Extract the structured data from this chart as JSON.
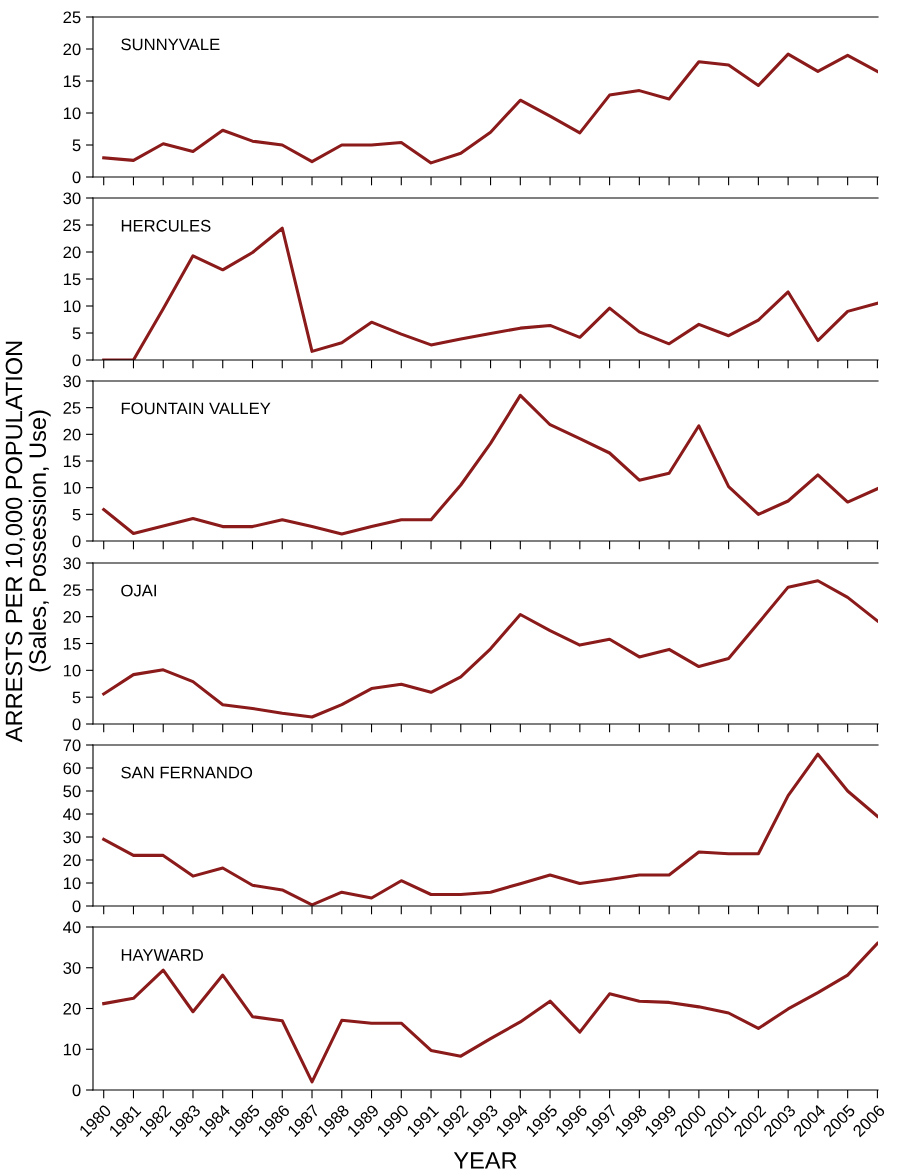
{
  "chart_data": [
    {
      "type": "line",
      "title": "SUNNYVALE",
      "categories": [
        "1980",
        "1981",
        "1982",
        "1983",
        "1984",
        "1985",
        "1986",
        "1987",
        "1988",
        "1989",
        "1990",
        "1991",
        "1992",
        "1993",
        "1994",
        "1995",
        "1996",
        "1997",
        "1998",
        "1999",
        "2000",
        "2001",
        "2002",
        "2003",
        "2004",
        "2005",
        "2006"
      ],
      "tick_labels": "y",
      "ylim": [
        0,
        25
      ],
      "yticks": [
        0,
        5,
        10,
        15,
        20,
        25
      ],
      "grid": false,
      "series": [
        {
          "color": "#8b1a1a",
          "values": [
            3,
            2.6,
            5.2,
            4,
            7.3,
            5.6,
            5,
            2.4,
            5,
            5,
            5.4,
            2.2,
            3.7,
            7,
            12,
            9.5,
            6.9,
            12.8,
            13.5,
            12.2,
            18,
            17.5,
            14.3,
            19.2,
            16.5,
            19,
            16.5
          ]
        }
      ]
    },
    {
      "type": "line",
      "title": "HERCULES",
      "categories": [
        "1980",
        "1981",
        "1982",
        "1983",
        "1984",
        "1985",
        "1986",
        "1987",
        "1988",
        "1989",
        "1990",
        "1991",
        "1992",
        "1993",
        "1994",
        "1995",
        "1996",
        "1997",
        "1998",
        "1999",
        "2000",
        "2001",
        "2002",
        "2003",
        "2004",
        "2005",
        "2006"
      ],
      "tick_labels": "y",
      "ylim": [
        0,
        30
      ],
      "yticks": [
        0,
        5,
        10,
        15,
        20,
        25,
        30
      ],
      "grid": false,
      "series": [
        {
          "color": "#8b1a1a",
          "values": [
            0,
            0,
            9.5,
            19.3,
            16.7,
            19.9,
            24.4,
            1.6,
            3.2,
            7,
            4.8,
            2.8,
            3.9,
            4.9,
            5.9,
            6.4,
            4.2,
            9.6,
            5.2,
            3,
            6.6,
            4.5,
            7.4,
            12.6,
            3.6,
            9,
            10.5
          ]
        }
      ]
    },
    {
      "type": "line",
      "title": "FOUNTAIN VALLEY",
      "ylabel": "ARRESTS PER 10,000 POPULATION\n(Sales, Possession, Use)",
      "categories": [
        "1980",
        "1981",
        "1982",
        "1983",
        "1984",
        "1985",
        "1986",
        "1987",
        "1988",
        "1989",
        "1990",
        "1991",
        "1992",
        "1993",
        "1994",
        "1995",
        "1996",
        "1997",
        "1998",
        "1999",
        "2000",
        "2001",
        "2002",
        "2003",
        "2004",
        "2005",
        "2006"
      ],
      "tick_labels": "y",
      "ylim": [
        0,
        30
      ],
      "yticks": [
        0,
        5,
        10,
        15,
        20,
        25,
        30
      ],
      "grid": false,
      "series": [
        {
          "color": "#8b1a1a",
          "values": [
            5.9,
            1.4,
            2.8,
            4.2,
            2.7,
            2.7,
            4,
            2.7,
            1.3,
            2.7,
            4,
            4,
            10.5,
            18.3,
            27.3,
            21.8,
            19.2,
            16.5,
            11.4,
            12.7,
            21.6,
            10.2,
            5,
            7.5,
            12.4,
            7.3,
            9.8
          ]
        }
      ]
    },
    {
      "type": "line",
      "title": "OJAI",
      "categories": [
        "1980",
        "1981",
        "1982",
        "1983",
        "1984",
        "1985",
        "1986",
        "1987",
        "1988",
        "1989",
        "1990",
        "1991",
        "1992",
        "1993",
        "1994",
        "1995",
        "1996",
        "1997",
        "1998",
        "1999",
        "2000",
        "2001",
        "2002",
        "2003",
        "2004",
        "2005",
        "2006"
      ],
      "tick_labels": "y",
      "ylim": [
        0,
        30
      ],
      "yticks": [
        0,
        5,
        10,
        15,
        20,
        25,
        30
      ],
      "grid": false,
      "series": [
        {
          "color": "#8b1a1a",
          "values": [
            5.6,
            9.2,
            10.1,
            7.9,
            3.6,
            2.9,
            2,
            1.3,
            3.6,
            6.6,
            7.4,
            5.9,
            8.8,
            14,
            20.4,
            17.4,
            14.7,
            15.8,
            12.5,
            13.9,
            10.7,
            12.2,
            18.8,
            25.5,
            26.7,
            23.6,
            19.2
          ]
        }
      ]
    },
    {
      "type": "line",
      "title": "SAN FERNANDO",
      "categories": [
        "1980",
        "1981",
        "1982",
        "1983",
        "1984",
        "1985",
        "1986",
        "1987",
        "1988",
        "1989",
        "1990",
        "1991",
        "1992",
        "1993",
        "1994",
        "1995",
        "1996",
        "1997",
        "1998",
        "1999",
        "2000",
        "2001",
        "2002",
        "2003",
        "2004",
        "2005",
        "2006"
      ],
      "tick_labels": "y",
      "ylim": [
        0,
        70
      ],
      "yticks": [
        0,
        10,
        20,
        30,
        40,
        50,
        60,
        70
      ],
      "grid": false,
      "series": [
        {
          "color": "#8b1a1a",
          "values": [
            29,
            22,
            22,
            13,
            16.5,
            9,
            7,
            0.5,
            6,
            3.5,
            11,
            5,
            5,
            6,
            9.7,
            13.5,
            9.8,
            11.5,
            13.5,
            13.5,
            23.5,
            22.7,
            22.7,
            48,
            66,
            50,
            39
          ]
        }
      ]
    },
    {
      "type": "line",
      "title": "HAYWARD",
      "xlabel": "YEAR",
      "categories": [
        "1980",
        "1981",
        "1982",
        "1983",
        "1984",
        "1985",
        "1986",
        "1987",
        "1988",
        "1989",
        "1990",
        "1991",
        "1992",
        "1993",
        "1994",
        "1995",
        "1996",
        "1997",
        "1998",
        "1999",
        "2000",
        "2001",
        "2002",
        "2003",
        "2004",
        "2005",
        "2006"
      ],
      "ylim": [
        0,
        40
      ],
      "yticks": [
        0,
        10,
        20,
        30,
        40
      ],
      "grid": false,
      "series": [
        {
          "color": "#8b1a1a",
          "values": [
            21.2,
            22.5,
            29.4,
            19.2,
            28.2,
            18,
            17,
            2,
            17.1,
            16.4,
            16.4,
            9.7,
            8.3,
            12.6,
            16.7,
            21.8,
            14.2,
            23.6,
            21.8,
            21.5,
            20.4,
            18.9,
            15.1,
            19.9,
            23.9,
            28.2,
            36
          ]
        }
      ]
    }
  ]
}
